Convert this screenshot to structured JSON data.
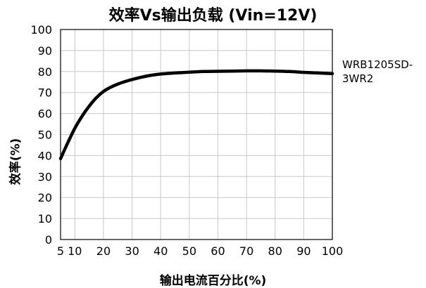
{
  "chart_data": {
    "type": "line",
    "title": "效率Vs输出负载 (Vin=12V)",
    "xlabel": "输出电流百分比(%)",
    "ylabel": "效率(%)",
    "xlim": [
      5,
      100
    ],
    "ylim": [
      0,
      100
    ],
    "x_ticks": [
      "5",
      "10",
      "20",
      "30",
      "40",
      "50",
      "60",
      "70",
      "80",
      "90",
      "100"
    ],
    "y_ticks": [
      "0",
      "10",
      "20",
      "30",
      "40",
      "50",
      "60",
      "70",
      "80",
      "90",
      "100"
    ],
    "grid": true,
    "legend_placement": "right",
    "series": [
      {
        "name": "WRB1205SD-3WR2",
        "color": "#000000",
        "x": [
          5,
          7.5,
          10,
          12.5,
          15,
          17.5,
          20,
          22.5,
          25,
          27.5,
          30,
          35,
          40,
          45,
          50,
          55,
          60,
          65,
          70,
          75,
          80,
          85,
          90,
          95,
          100
        ],
        "y": [
          38.5,
          46,
          53,
          58.7,
          63.5,
          67.5,
          70.5,
          72.5,
          74,
          75.2,
          76.2,
          77.8,
          78.8,
          79.3,
          79.7,
          80,
          80.1,
          80.2,
          80.3,
          80.3,
          80.2,
          80,
          79.6,
          79.3,
          79
        ]
      }
    ]
  }
}
